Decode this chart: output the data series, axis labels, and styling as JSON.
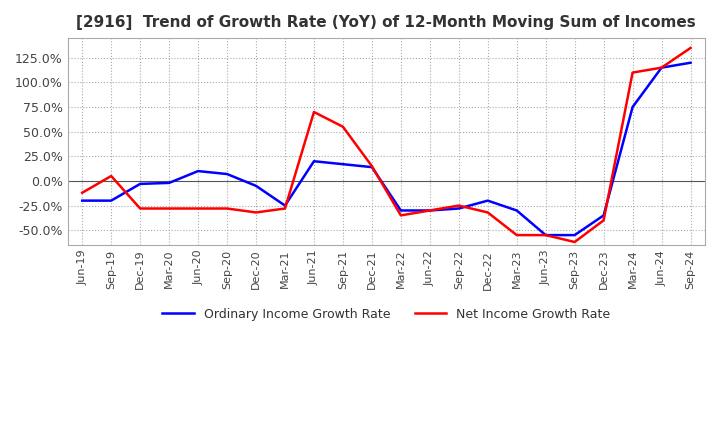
{
  "title": "[2916]  Trend of Growth Rate (YoY) of 12-Month Moving Sum of Incomes",
  "title_fontsize": 11,
  "ylim": [
    -65,
    145
  ],
  "yticks": [
    -50,
    -25,
    0,
    25,
    50,
    75,
    100,
    125
  ],
  "background_color": "#ffffff",
  "grid_color": "#aaaaaa",
  "legend_labels": [
    "Ordinary Income Growth Rate",
    "Net Income Growth Rate"
  ],
  "legend_colors": [
    "#0000ff",
    "#ff0000"
  ],
  "x_labels": [
    "Jun-19",
    "Sep-19",
    "Dec-19",
    "Mar-20",
    "Jun-20",
    "Sep-20",
    "Dec-20",
    "Mar-21",
    "Jun-21",
    "Sep-21",
    "Dec-21",
    "Mar-22",
    "Jun-22",
    "Sep-22",
    "Dec-22",
    "Mar-23",
    "Jun-23",
    "Sep-23",
    "Dec-23",
    "Mar-24",
    "Jun-24",
    "Sep-24"
  ],
  "ordinary_income": [
    -20,
    -20,
    -3,
    -2,
    10,
    7,
    -5,
    -25,
    20,
    17,
    14,
    -30,
    -30,
    -28,
    -20,
    -30,
    -55,
    -55,
    -35,
    75,
    115,
    120
  ],
  "net_income": [
    -12,
    5,
    -28,
    -28,
    -28,
    -28,
    -32,
    -28,
    70,
    55,
    15,
    -35,
    -30,
    -25,
    -32,
    -55,
    -55,
    -62,
    -40,
    110,
    115,
    135
  ]
}
